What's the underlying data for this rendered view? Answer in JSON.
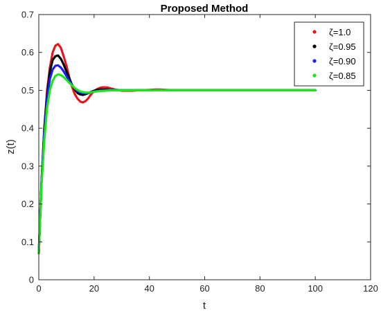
{
  "chart_data": {
    "type": "line",
    "title": "Proposed Method",
    "xlabel": "t",
    "ylabel": "z(t)",
    "xlim": [
      0,
      120
    ],
    "ylim": [
      0,
      0.7
    ],
    "xticks": [
      0,
      20,
      40,
      60,
      80,
      100,
      120
    ],
    "yticks": [
      0,
      0.1,
      0.2,
      0.3,
      0.4,
      0.5,
      0.6,
      0.7
    ],
    "grid": false,
    "legend_position": "top-right",
    "series": [
      {
        "name": "ζ=1.0",
        "color": "#e8161b",
        "x": [
          0,
          1,
          2,
          3,
          4,
          5,
          6,
          7,
          8,
          9,
          10,
          11,
          12,
          13,
          14,
          15,
          16,
          17,
          18,
          19,
          20,
          21,
          22,
          23,
          24,
          25,
          26,
          27,
          28,
          29,
          30,
          32,
          34,
          36,
          38,
          40,
          42,
          44,
          46,
          48,
          50,
          55,
          60,
          70,
          80,
          90,
          100
        ],
        "y": [
          0.07,
          0.26,
          0.4,
          0.5,
          0.56,
          0.6,
          0.618,
          0.622,
          0.612,
          0.59,
          0.565,
          0.535,
          0.51,
          0.49,
          0.478,
          0.47,
          0.468,
          0.472,
          0.48,
          0.49,
          0.498,
          0.503,
          0.506,
          0.508,
          0.508,
          0.507,
          0.505,
          0.503,
          0.501,
          0.5,
          0.499,
          0.499,
          0.499,
          0.5,
          0.5,
          0.501,
          0.502,
          0.502,
          0.501,
          0.5,
          0.5,
          0.5,
          0.5,
          0.5,
          0.5,
          0.5,
          0.5
        ]
      },
      {
        "name": "ζ=0.95",
        "color": "#000000",
        "x": [
          0,
          1,
          2,
          3,
          4,
          5,
          6,
          7,
          8,
          9,
          10,
          11,
          12,
          13,
          14,
          15,
          16,
          17,
          18,
          19,
          20,
          21,
          22,
          23,
          24,
          25,
          26,
          27,
          28,
          30,
          32,
          34,
          36,
          40,
          45,
          50,
          60,
          70,
          80,
          90,
          100
        ],
        "y": [
          0.07,
          0.26,
          0.4,
          0.49,
          0.55,
          0.58,
          0.59,
          0.592,
          0.583,
          0.568,
          0.55,
          0.532,
          0.515,
          0.502,
          0.493,
          0.489,
          0.488,
          0.49,
          0.493,
          0.496,
          0.499,
          0.501,
          0.502,
          0.502,
          0.502,
          0.502,
          0.501,
          0.501,
          0.5,
          0.5,
          0.5,
          0.5,
          0.5,
          0.5,
          0.5,
          0.5,
          0.5,
          0.5,
          0.5,
          0.5,
          0.5
        ]
      },
      {
        "name": "ζ=0.90",
        "color": "#1a1aff",
        "x": [
          0,
          1,
          2,
          3,
          4,
          5,
          6,
          7,
          8,
          9,
          10,
          11,
          12,
          13,
          14,
          15,
          16,
          17,
          18,
          19,
          20,
          22,
          24,
          26,
          28,
          30,
          35,
          40,
          50,
          60,
          70,
          80,
          90,
          100
        ],
        "y": [
          0.07,
          0.26,
          0.39,
          0.48,
          0.53,
          0.555,
          0.565,
          0.566,
          0.56,
          0.55,
          0.538,
          0.525,
          0.514,
          0.505,
          0.498,
          0.494,
          0.492,
          0.492,
          0.493,
          0.495,
          0.497,
          0.499,
          0.5,
          0.501,
          0.501,
          0.5,
          0.5,
          0.5,
          0.5,
          0.5,
          0.5,
          0.5,
          0.5,
          0.5
        ]
      },
      {
        "name": "ζ=0.85",
        "color": "#1ae61a",
        "x": [
          0,
          1,
          2,
          3,
          4,
          5,
          6,
          7,
          8,
          9,
          10,
          11,
          12,
          13,
          14,
          15,
          16,
          17,
          18,
          19,
          20,
          22,
          24,
          26,
          28,
          30,
          35,
          40,
          50,
          60,
          70,
          80,
          90,
          100
        ],
        "y": [
          0.07,
          0.25,
          0.37,
          0.455,
          0.5,
          0.525,
          0.538,
          0.542,
          0.54,
          0.535,
          0.528,
          0.52,
          0.513,
          0.506,
          0.501,
          0.497,
          0.495,
          0.494,
          0.494,
          0.495,
          0.496,
          0.498,
          0.499,
          0.5,
          0.5,
          0.5,
          0.5,
          0.5,
          0.5,
          0.5,
          0.5,
          0.5,
          0.5,
          0.5
        ]
      }
    ]
  }
}
